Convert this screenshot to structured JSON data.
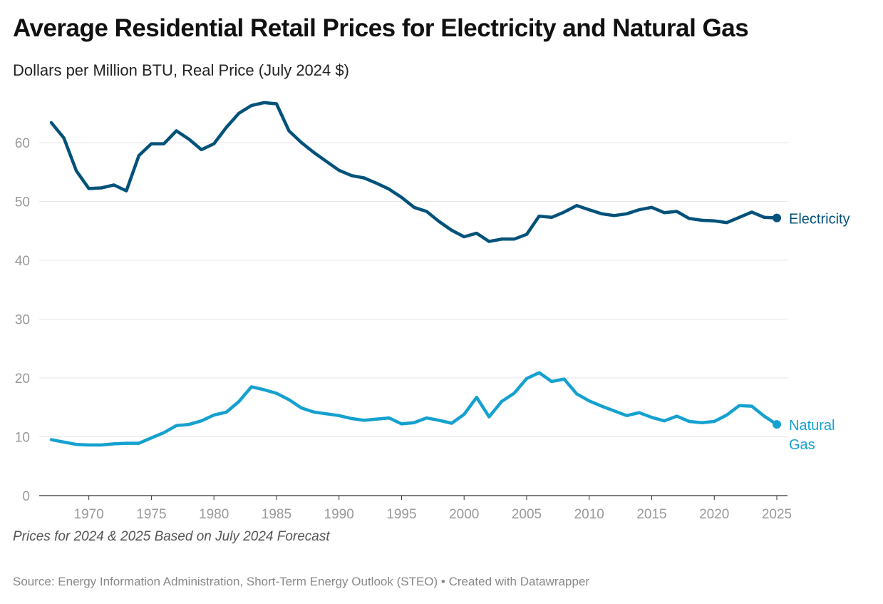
{
  "chart_data": {
    "type": "line",
    "title": "Average Residential Retail Prices for Electricity and Natural Gas",
    "subtitle": "Dollars per Million BTU, Real Price (July 2024 $)",
    "note": "Prices for 2024 & 2025 Based on July 2024 Forecast",
    "source": "Source: Energy Information Administration, Short-Term Energy Outlook (STEO) • Created with Datawrapper",
    "xlim": [
      1967,
      2025
    ],
    "ylim": [
      0,
      67
    ],
    "x_ticks": [
      1970,
      1975,
      1980,
      1985,
      1990,
      1995,
      2000,
      2005,
      2010,
      2015,
      2020,
      2025
    ],
    "y_ticks": [
      0,
      10,
      20,
      30,
      40,
      50,
      60
    ],
    "grid": true,
    "x_start": 1967,
    "series": [
      {
        "name": "Electricity",
        "color": "#01527a",
        "label_lines": [
          "Electricity"
        ],
        "values": [
          63.4,
          60.8,
          55.2,
          52.2,
          52.3,
          52.8,
          51.8,
          57.8,
          59.8,
          59.8,
          62.0,
          60.6,
          58.8,
          59.8,
          62.6,
          65.0,
          66.3,
          66.8,
          66.6,
          62.0,
          60.0,
          58.3,
          56.8,
          55.3,
          54.4,
          54.0,
          53.1,
          52.1,
          50.7,
          49.0,
          48.3,
          46.6,
          45.1,
          44.0,
          44.6,
          43.2,
          43.6,
          43.6,
          44.4,
          47.5,
          47.3,
          48.2,
          49.3,
          48.6,
          47.9,
          47.6,
          47.9,
          48.6,
          49.0,
          48.1,
          48.3,
          47.1,
          46.8,
          46.7,
          46.4,
          47.3,
          48.2,
          47.3,
          47.2
        ]
      },
      {
        "name": "Natural Gas",
        "color": "#15a1cf",
        "label_lines": [
          "Natural",
          "Gas"
        ],
        "values": [
          9.5,
          9.1,
          8.7,
          8.6,
          8.6,
          8.8,
          8.9,
          8.9,
          9.8,
          10.7,
          11.9,
          12.1,
          12.7,
          13.7,
          14.2,
          16.0,
          18.5,
          18.0,
          17.4,
          16.3,
          14.9,
          14.2,
          13.9,
          13.6,
          13.1,
          12.8,
          13.0,
          13.2,
          12.2,
          12.4,
          13.2,
          12.8,
          12.3,
          13.8,
          16.7,
          13.4,
          16.0,
          17.4,
          19.9,
          20.9,
          19.4,
          19.8,
          17.3,
          16.1,
          15.2,
          14.4,
          13.6,
          14.1,
          13.3,
          12.7,
          13.5,
          12.6,
          12.4,
          12.6,
          13.7,
          15.3,
          15.2,
          13.5,
          12.1
        ]
      }
    ]
  }
}
